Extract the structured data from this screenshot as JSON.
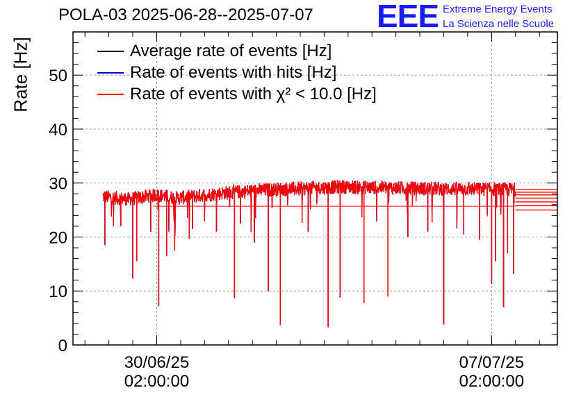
{
  "title": "POLA-03 2025-06-28--2025-07-07",
  "logo": {
    "mark": "EEE",
    "line1": "Extreme Energy Events",
    "line2": "La Scienza nelle Scuole"
  },
  "colors": {
    "average": "#000000",
    "hits": "#0000cc",
    "chi2": "#ff0000",
    "logo": "#1a1aff"
  },
  "chart_data": {
    "type": "line",
    "ylabel": "Rate [Hz]",
    "ylim": [
      0,
      58
    ],
    "yticks": [
      0,
      10,
      20,
      30,
      40,
      50
    ],
    "xlim": [
      "2025-06-28T08:00:00",
      "2025-07-08T11:00:00"
    ],
    "xticks": [
      {
        "date": "2025-06-30T02:00:00",
        "line1": "30/06/25",
        "line2": "02:00:00"
      },
      {
        "date": "2025-07-07T02:00:00",
        "line1": "07/07/25",
        "line2": "02:00:00"
      }
    ],
    "grid": true,
    "legend_position": "top-left",
    "series": [
      {
        "name": "Average rate of events [Hz]",
        "color": "#000000",
        "baseline": 27.5
      },
      {
        "name": "Rate of events with hits [Hz]",
        "color": "#0000cc",
        "baseline": 27.5
      },
      {
        "name": "Rate of events with χ² < 10.0 [Hz]",
        "color": "#ff0000",
        "baseline": 27.5
      }
    ],
    "x_range_data": [
      "2025-06-28T23:00:00",
      "2025-07-07T14:00:00"
    ],
    "trend": [
      {
        "date": "2025-06-28T23:00:00",
        "y": 27.5
      },
      {
        "date": "2025-06-29T12:00:00",
        "y": 27.0
      },
      {
        "date": "2025-06-30T02:00:00",
        "y": 27.8
      },
      {
        "date": "2025-06-30T12:00:00",
        "y": 27.2
      },
      {
        "date": "2025-07-01T12:00:00",
        "y": 28.2
      },
      {
        "date": "2025-07-02T12:00:00",
        "y": 28.8
      },
      {
        "date": "2025-07-04T00:00:00",
        "y": 29.3
      },
      {
        "date": "2025-07-05T12:00:00",
        "y": 29.0
      },
      {
        "date": "2025-07-07T14:00:00",
        "y": 28.8
      }
    ],
    "dips": [
      {
        "date": "2025-06-29T00:00:00",
        "y": 18.5
      },
      {
        "date": "2025-06-29T08:00:00",
        "y": 22.0
      },
      {
        "date": "2025-06-29T14:00:00",
        "y": 12.3
      },
      {
        "date": "2025-06-29T16:00:00",
        "y": 15.5
      },
      {
        "date": "2025-06-29T23:00:00",
        "y": 21.0
      },
      {
        "date": "2025-06-30T03:00:00",
        "y": 7.2
      },
      {
        "date": "2025-06-30T07:00:00",
        "y": 16.5
      },
      {
        "date": "2025-06-30T11:00:00",
        "y": 17.5
      },
      {
        "date": "2025-06-30T20:00:00",
        "y": 21.5
      },
      {
        "date": "2025-07-01T08:00:00",
        "y": 21.0
      },
      {
        "date": "2025-07-01T17:00:00",
        "y": 8.7
      },
      {
        "date": "2025-07-01T20:00:00",
        "y": 22.5
      },
      {
        "date": "2025-07-02T03:00:00",
        "y": 19.0
      },
      {
        "date": "2025-07-02T10:00:00",
        "y": 10.0
      },
      {
        "date": "2025-07-02T16:00:00",
        "y": 3.7
      },
      {
        "date": "2025-07-03T06:00:00",
        "y": 21.0
      },
      {
        "date": "2025-07-03T16:00:00",
        "y": 3.3
      },
      {
        "date": "2025-07-03T22:00:00",
        "y": 8.8
      },
      {
        "date": "2025-07-04T10:00:00",
        "y": 7.8
      },
      {
        "date": "2025-07-04T22:00:00",
        "y": 9.0
      },
      {
        "date": "2025-07-05T08:00:00",
        "y": 20.0
      },
      {
        "date": "2025-07-05T18:00:00",
        "y": 21.0
      },
      {
        "date": "2025-07-06T02:00:00",
        "y": 3.8
      },
      {
        "date": "2025-07-06T12:00:00",
        "y": 20.5
      },
      {
        "date": "2025-07-06T20:00:00",
        "y": 19.5
      },
      {
        "date": "2025-07-07T02:00:00",
        "y": 11.3
      },
      {
        "date": "2025-07-07T04:00:00",
        "y": 15.5
      },
      {
        "date": "2025-07-07T08:00:00",
        "y": 7.0
      },
      {
        "date": "2025-07-07T10:00:00",
        "y": 17.0
      },
      {
        "date": "2025-07-07T13:00:00",
        "y": 13.2
      }
    ]
  }
}
